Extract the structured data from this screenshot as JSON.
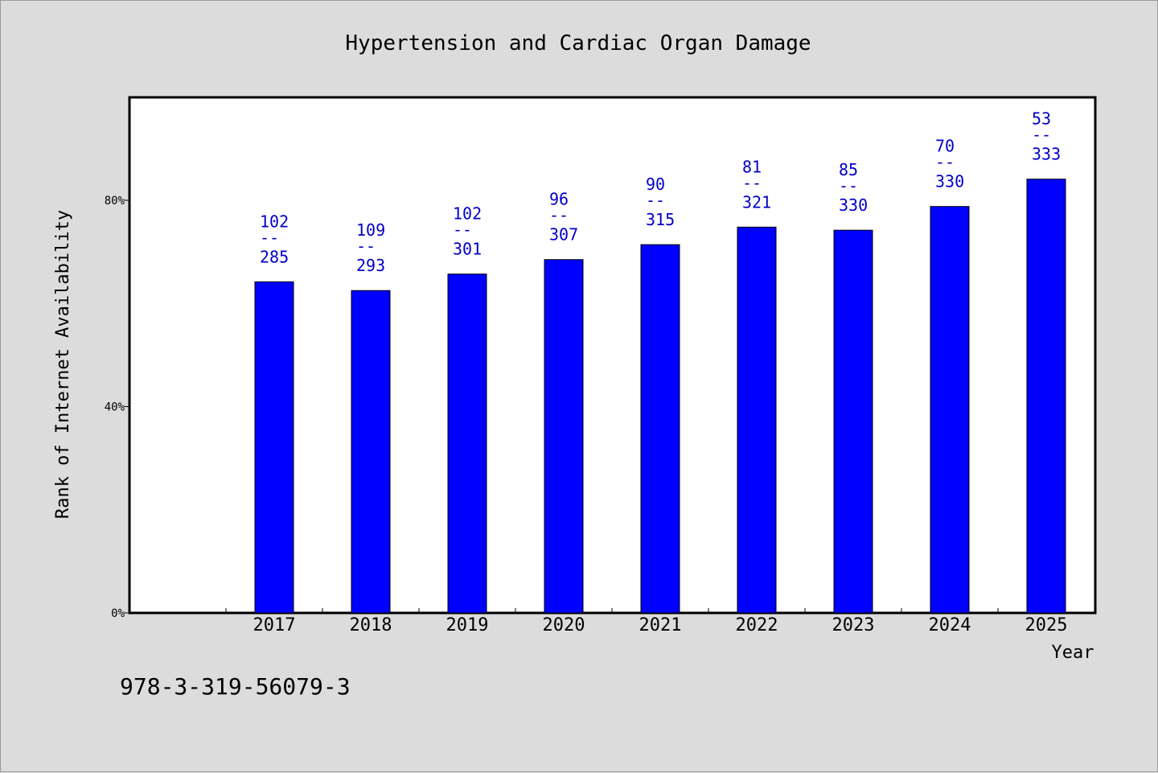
{
  "chart_data": {
    "type": "bar",
    "title": "Hypertension and Cardiac Organ Damage",
    "xlabel": "Year",
    "ylabel": "Rank of Internet Availability",
    "ylim": [
      0,
      100
    ],
    "yticks": [
      {
        "value": 0,
        "label": "0%"
      },
      {
        "value": 40,
        "label": "40%"
      },
      {
        "value": 80,
        "label": "80%"
      }
    ],
    "categories": [
      "2017",
      "2018",
      "2019",
      "2020",
      "2021",
      "2022",
      "2023",
      "2024",
      "2025"
    ],
    "values": [
      64.2,
      62.5,
      65.7,
      68.5,
      71.4,
      74.8,
      74.2,
      78.8,
      84.1
    ],
    "data_labels": [
      {
        "top": "102",
        "sep": "--",
        "bottom": "285"
      },
      {
        "top": "109",
        "sep": "--",
        "bottom": "293"
      },
      {
        "top": "102",
        "sep": "--",
        "bottom": "301"
      },
      {
        "top": "96",
        "sep": "--",
        "bottom": "307"
      },
      {
        "top": "90",
        "sep": "--",
        "bottom": "315"
      },
      {
        "top": "81",
        "sep": "--",
        "bottom": "321"
      },
      {
        "top": "85",
        "sep": "--",
        "bottom": "330"
      },
      {
        "top": "70",
        "sep": "--",
        "bottom": "330"
      },
      {
        "top": "53",
        "sep": "--",
        "bottom": "333"
      }
    ],
    "bar_color": "#0000ff",
    "label_color": "#0000c8",
    "plot_background": "#ffffff",
    "page_background": "#dcdcdc",
    "grid": false,
    "legend": "none"
  },
  "footer_text": "978-3-319-56079-3"
}
